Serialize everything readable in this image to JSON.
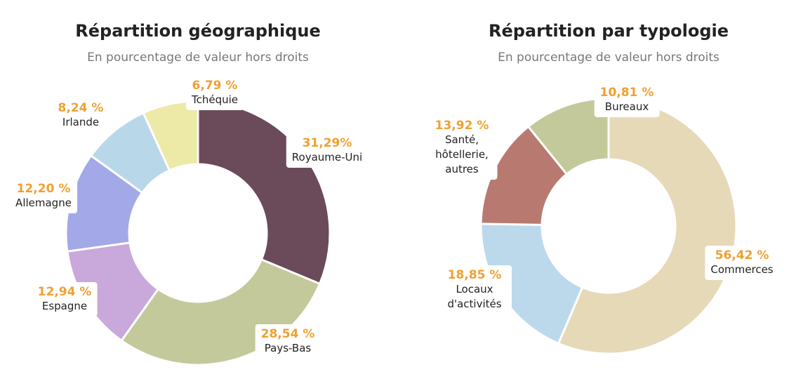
{
  "chart_data": [
    {
      "type": "pie",
      "donut": true,
      "title": "Répartition géographique",
      "subtitle": "En pourcentage de valeur hors droits",
      "categories": [
        "Royaume-Uni",
        "Pays-Bas",
        "Espagne",
        "Allemagne",
        "Irlande",
        "Tchéquie"
      ],
      "values": [
        31.29,
        28.54,
        12.94,
        12.2,
        8.24,
        6.79
      ],
      "value_labels": [
        "31,29%",
        "28,54 %",
        "12,94 %",
        "12,20 %",
        "8,24 %",
        "6,79 %"
      ],
      "colors": [
        "#6b4a5a",
        "#c3c99a",
        "#c9a8dc",
        "#a3a8e8",
        "#b8d8ea",
        "#ede9a6"
      ]
    },
    {
      "type": "pie",
      "donut": true,
      "title": "Répartition par typologie",
      "subtitle": "En pourcentage de valeur hors droits",
      "categories": [
        "Commerces",
        "Locaux d'activités",
        "Santé, hôtellerie, autres",
        "Bureaux"
      ],
      "values": [
        56.42,
        18.85,
        13.92,
        10.81
      ],
      "value_labels": [
        "56,42 %",
        "18,85 %",
        "13,92 %",
        "10,81 %"
      ],
      "colors": [
        "#e6d9b8",
        "#bcd9ec",
        "#b87a70",
        "#c3c99a"
      ]
    }
  ]
}
